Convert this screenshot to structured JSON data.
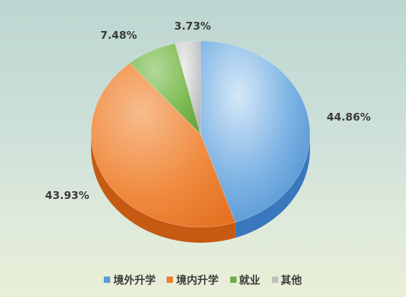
{
  "chart_data": {
    "type": "pie",
    "style": "3d",
    "title": "",
    "categories": [
      "境外升学",
      "境内升学",
      "就业",
      "其他"
    ],
    "values": [
      44.86,
      43.93,
      7.48,
      3.73
    ],
    "data_labels": [
      "44.86%",
      "43.93%",
      "7.48%",
      "3.73%"
    ],
    "colors": [
      "#5b9bd5",
      "#ed7d31",
      "#70ad47",
      "#bfbfbf"
    ],
    "legend": {
      "placement": "bottom",
      "entries": [
        "境外升学",
        "境内升学",
        "就业",
        "其他"
      ]
    }
  }
}
